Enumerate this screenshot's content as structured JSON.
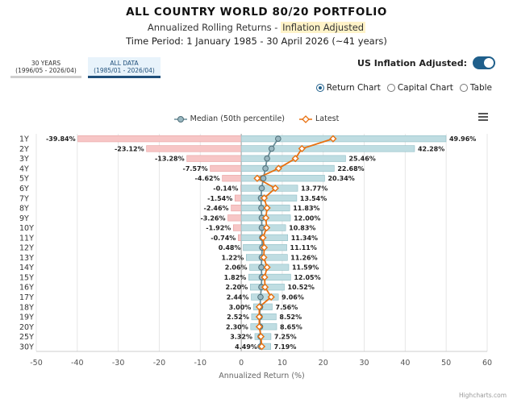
{
  "header": {
    "title": "ALL COUNTRY WORLD 80/20 PORTFOLIO",
    "subtitle_prefix": "Annualized Rolling Returns - ",
    "subtitle_highlight": "Inflation Adjusted",
    "period": "Time Period: 1 January 1985 - 30 April 2026 (~41 years)"
  },
  "range_buttons": [
    {
      "line1": "30 YEARS",
      "line2": "(1996/05 - 2026/04)",
      "active": false
    },
    {
      "line1": "ALL DATA",
      "line2": "(1985/01 - 2026/04)",
      "active": true
    }
  ],
  "inflation_toggle": {
    "label": "US Inflation Adjusted:",
    "on": true
  },
  "chart_options": [
    {
      "label": "Return Chart",
      "selected": true
    },
    {
      "label": "Capital Chart",
      "selected": false
    },
    {
      "label": "Table",
      "selected": false
    }
  ],
  "menu_icon": "hamburger-menu-icon",
  "credit": "Highcharts.com",
  "colors": {
    "neg_bar": "#f7c6c6",
    "neg_bar_stroke": "#e8a0a0",
    "pos_bar": "#bfdde2",
    "pos_bar_stroke": "#90bec6",
    "median": "#6a8e99",
    "latest": "#e8700f",
    "accent": "#1f5f8b"
  },
  "chart_data": {
    "type": "bar",
    "orientation": "horizontal",
    "categories": [
      "1Y",
      "2Y",
      "3Y",
      "4Y",
      "5Y",
      "6Y",
      "7Y",
      "8Y",
      "9Y",
      "10Y",
      "11Y",
      "12Y",
      "13Y",
      "14Y",
      "15Y",
      "16Y",
      "17Y",
      "18Y",
      "19Y",
      "20Y",
      "25Y",
      "30Y"
    ],
    "min_values": [
      -39.84,
      -23.12,
      -13.28,
      -7.57,
      -4.62,
      -0.14,
      -1.54,
      -2.46,
      -3.26,
      -1.92,
      -0.74,
      0.48,
      1.22,
      2.06,
      1.82,
      2.2,
      2.44,
      3.0,
      2.52,
      2.3,
      3.32,
      4.49
    ],
    "min_labels": [
      "-39.84%",
      "-23.12%",
      "-13.28%",
      "-7.57%",
      "-4.62%",
      "-0.14%",
      "-1.54%",
      "-2.46%",
      "-3.26%",
      "-1.92%",
      "-0.74%",
      "0.48%",
      "1.22%",
      "2.06%",
      "1.82%",
      "2.20%",
      "2.44%",
      "3.00%",
      "2.52%",
      "2.30%",
      "3.32%",
      "4.49%"
    ],
    "max_values": [
      49.96,
      42.28,
      25.46,
      22.68,
      20.34,
      13.77,
      13.54,
      11.83,
      12.0,
      10.83,
      11.34,
      11.11,
      11.26,
      11.59,
      12.05,
      10.52,
      9.06,
      7.56,
      8.52,
      8.65,
      7.25,
      7.19
    ],
    "max_labels": [
      "49.96%",
      "42.28%",
      "25.46%",
      "22.68%",
      "20.34%",
      "13.77%",
      "13.54%",
      "11.83%",
      "12.00%",
      "10.83%",
      "11.34%",
      "11.11%",
      "11.26%",
      "11.59%",
      "12.05%",
      "10.52%",
      "9.06%",
      "7.56%",
      "8.52%",
      "8.65%",
      "7.25%",
      "7.19%"
    ],
    "series": [
      {
        "name": "Median (50th percentile)",
        "values": [
          9.0,
          7.4,
          6.3,
          5.9,
          5.4,
          5.0,
          4.8,
          4.9,
          5.0,
          5.0,
          5.1,
          5.1,
          5.0,
          4.9,
          5.0,
          4.9,
          4.7,
          4.6,
          4.5,
          4.6,
          4.7,
          4.7
        ]
      },
      {
        "name": "Latest",
        "values": [
          22.4,
          14.8,
          13.2,
          9.1,
          3.9,
          8.3,
          5.6,
          6.3,
          6.0,
          6.2,
          5.3,
          5.6,
          5.5,
          6.3,
          5.7,
          5.8,
          7.3,
          4.4,
          4.4,
          4.4,
          4.8,
          5.0
        ]
      }
    ],
    "xlabel": "Annualized Return (%)",
    "xlim": [
      -50,
      60
    ],
    "xticks": [
      -50,
      -40,
      -30,
      -20,
      -10,
      0,
      10,
      20,
      30,
      40,
      50,
      60
    ],
    "grid": true,
    "legend_position": "top-center"
  }
}
